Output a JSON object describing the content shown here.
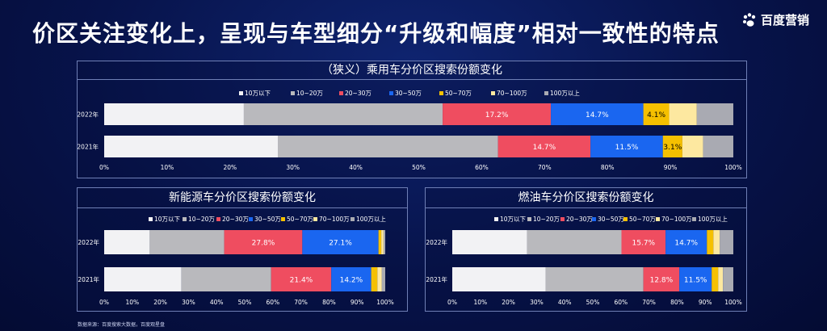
{
  "header": {
    "title": "价区关注变化上，呈现与车型细分“升级和幅度”相对一致性的特点",
    "logo_text": "百度营销",
    "logo_icon": "baidu-paw-icon"
  },
  "source_note": "数据来源：百度搜索大数据，百度观星盘",
  "colors": {
    "10万以下": "#f2f2f4",
    "10~20万": "#b9b9bd",
    "20~30万": "#ef4d60",
    "30~50万": "#1a66f0",
    "50~70万": "#f5c000",
    "70~100万": "#fde8a0",
    "100万以上": "#a9aab2"
  },
  "chart_data": [
    {
      "type": "bar",
      "orientation": "horizontal",
      "stacked": true,
      "title": "（狭义）乘用车分价区搜索份额变化",
      "categories": [
        "2022年",
        "2021年"
      ],
      "xlim": [
        0,
        100
      ],
      "xticks": [
        "0%",
        "10%",
        "20%",
        "30%",
        "40%",
        "50%",
        "60%",
        "70%",
        "80%",
        "90%",
        "100%"
      ],
      "legend_position": "top",
      "series": [
        {
          "name": "10万以下",
          "values": [
            22.2,
            27.6
          ],
          "labels": [
            "",
            ""
          ]
        },
        {
          "name": "10~20万",
          "values": [
            31.6,
            35.0
          ],
          "labels": [
            "",
            ""
          ]
        },
        {
          "name": "20~30万",
          "values": [
            17.2,
            14.7
          ],
          "labels": [
            "17.2%",
            "14.7%"
          ]
        },
        {
          "name": "30~50万",
          "values": [
            14.7,
            11.5
          ],
          "labels": [
            "14.7%",
            "11.5%"
          ]
        },
        {
          "name": "50~70万",
          "values": [
            4.1,
            3.1
          ],
          "labels": [
            "4.1%",
            "3.1%"
          ]
        },
        {
          "name": "70~100万",
          "values": [
            4.4,
            3.3
          ],
          "labels": [
            "",
            ""
          ]
        },
        {
          "name": "100万以上",
          "values": [
            5.8,
            4.8
          ],
          "labels": [
            "",
            ""
          ]
        }
      ]
    },
    {
      "type": "bar",
      "orientation": "horizontal",
      "stacked": true,
      "title": "新能源车分价区搜索份额变化",
      "categories": [
        "2022年",
        "2021年"
      ],
      "xlim": [
        0,
        100
      ],
      "xticks": [
        "0%",
        "10%",
        "20%",
        "30%",
        "40%",
        "50%",
        "60%",
        "70%",
        "80%",
        "90%",
        "100%"
      ],
      "legend_position": "top",
      "series": [
        {
          "name": "10万以下",
          "values": [
            16.2,
            27.5
          ],
          "labels": [
            "",
            ""
          ]
        },
        {
          "name": "10~20万",
          "values": [
            26.5,
            31.9
          ],
          "labels": [
            "",
            ""
          ]
        },
        {
          "name": "20~30万",
          "values": [
            27.8,
            21.4
          ],
          "labels": [
            "27.8%",
            "21.4%"
          ]
        },
        {
          "name": "30~50万",
          "values": [
            27.1,
            14.2
          ],
          "labels": [
            "27.1%",
            "14.2%"
          ]
        },
        {
          "name": "50~70万",
          "values": [
            1.0,
            2.2
          ],
          "labels": [
            "",
            ""
          ]
        },
        {
          "name": "70~100万",
          "values": [
            0.8,
            1.6
          ],
          "labels": [
            "",
            ""
          ]
        },
        {
          "name": "100万以上",
          "values": [
            0.6,
            1.2
          ],
          "labels": [
            "",
            ""
          ]
        }
      ]
    },
    {
      "type": "bar",
      "orientation": "horizontal",
      "stacked": true,
      "title": "燃油车分价区搜索份额变化",
      "categories": [
        "2022年",
        "2021年"
      ],
      "xlim": [
        0,
        100
      ],
      "xticks": [
        "0%",
        "10%",
        "20%",
        "30%",
        "40%",
        "50%",
        "60%",
        "70%",
        "80%",
        "90%",
        "100%"
      ],
      "legend_position": "top",
      "series": [
        {
          "name": "10万以下",
          "values": [
            26.6,
            33.2
          ],
          "labels": [
            "",
            ""
          ]
        },
        {
          "name": "10~20万",
          "values": [
            33.6,
            34.8
          ],
          "labels": [
            "",
            ""
          ]
        },
        {
          "name": "20~30万",
          "values": [
            15.7,
            12.8
          ],
          "labels": [
            "15.7%",
            "12.8%"
          ]
        },
        {
          "name": "30~50万",
          "values": [
            14.7,
            11.5
          ],
          "labels": [
            "14.7%",
            "11.5%"
          ]
        },
        {
          "name": "50~70万",
          "values": [
            2.3,
            2.3
          ],
          "labels": [
            "",
            ""
          ]
        },
        {
          "name": "70~100万",
          "values": [
            2.3,
            1.7
          ],
          "labels": [
            "",
            ""
          ]
        },
        {
          "name": "100万以上",
          "values": [
            4.8,
            3.7
          ],
          "labels": [
            "",
            ""
          ]
        }
      ]
    }
  ]
}
